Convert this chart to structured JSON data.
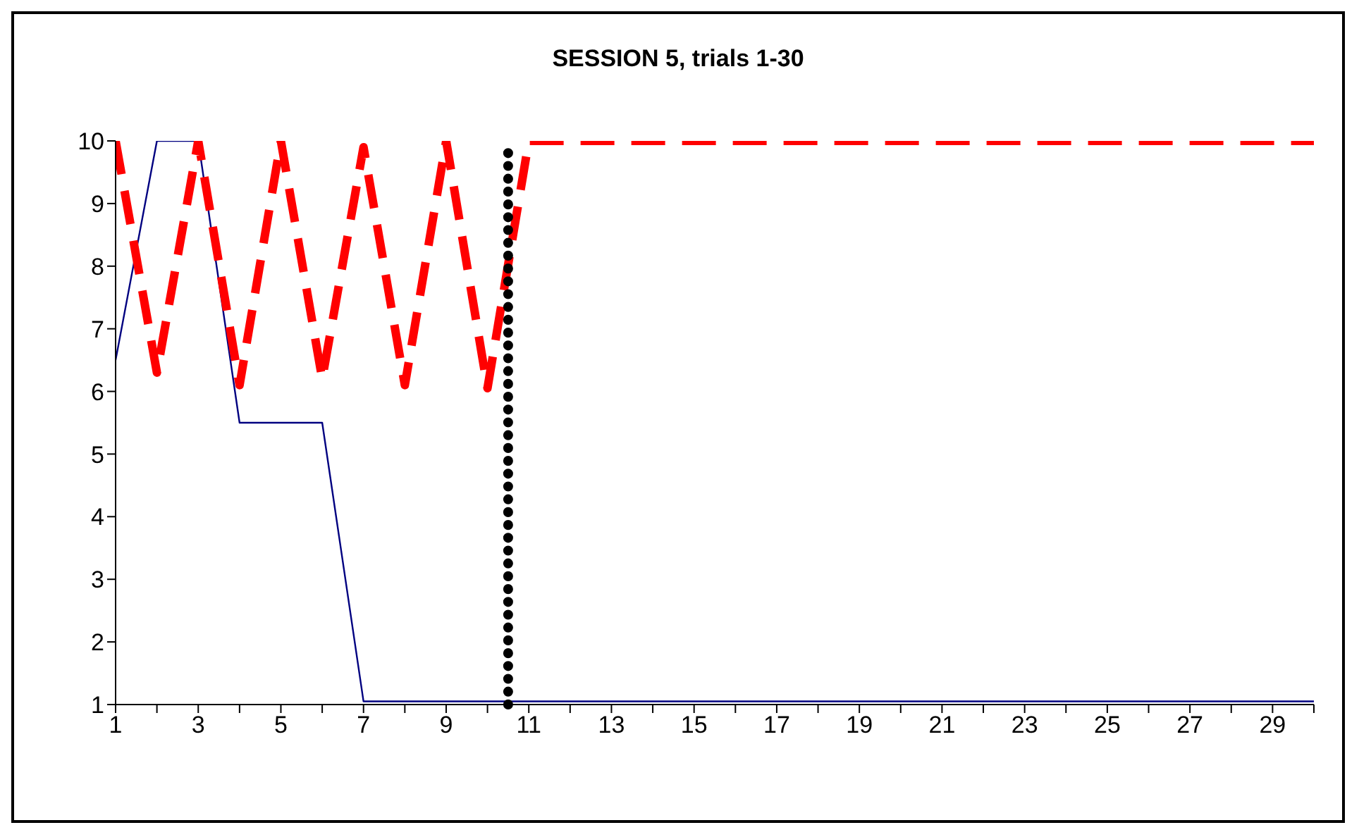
{
  "chart_data": {
    "type": "line",
    "title": "SESSION 5, trials 1-30",
    "x": [
      1,
      2,
      3,
      4,
      5,
      6,
      7,
      8,
      9,
      10,
      11,
      12,
      13,
      14,
      15,
      16,
      17,
      18,
      19,
      20,
      21,
      22,
      23,
      24,
      25,
      26,
      27,
      28,
      29,
      30
    ],
    "series": [
      {
        "color": "#000080",
        "line_style": "solid",
        "values": [
          6.5,
          10,
          10,
          5.5,
          5.5,
          5.5,
          1.05,
          1.05,
          1.05,
          1.05,
          1.05,
          1.05,
          1.05,
          1.05,
          1.05,
          1.05,
          1.05,
          1.05,
          1.05,
          1.05,
          1.05,
          1.05,
          1.05,
          1.05,
          1.05,
          1.05,
          1.05,
          1.05,
          1.05,
          1.05
        ]
      },
      {
        "color": "#ff0000",
        "line_style": "dashed",
        "values": [
          10,
          6.3,
          10,
          6.1,
          10,
          6.2,
          9.9,
          6.1,
          10,
          6.05,
          10,
          10,
          10,
          10,
          10,
          10,
          10,
          10,
          10,
          10,
          10,
          10,
          10,
          10,
          10,
          10,
          10,
          10,
          10,
          10
        ]
      }
    ],
    "ref_lines": [
      {
        "axis": "x",
        "value": 10.5,
        "color": "#000000",
        "line_style": "dotted"
      }
    ],
    "xlim": [
      1,
      30
    ],
    "xticks": [
      1,
      {
        "value": 2,
        "label": null
      },
      3,
      {
        "value": 4,
        "label": null
      },
      5,
      {
        "value": 6,
        "label": null
      },
      7,
      {
        "value": 8,
        "label": null
      },
      9,
      {
        "value": 10,
        "label": null
      },
      11,
      {
        "value": 12,
        "label": null
      },
      13,
      {
        "value": 14,
        "label": null
      },
      15,
      {
        "value": 16,
        "label": null
      },
      17,
      {
        "value": 18,
        "label": null
      },
      19,
      {
        "value": 20,
        "label": null
      },
      21,
      {
        "value": 22,
        "label": null
      },
      23,
      {
        "value": 24,
        "label": null
      },
      25,
      {
        "value": 26,
        "label": null
      },
      27,
      {
        "value": 28,
        "label": null
      },
      29,
      {
        "value": 30,
        "label": null
      }
    ],
    "ylim": [
      1,
      10
    ],
    "yticks": [
      1,
      2,
      3,
      4,
      5,
      6,
      7,
      8,
      9,
      10
    ],
    "grid": false,
    "legend": false,
    "marker": "none"
  }
}
